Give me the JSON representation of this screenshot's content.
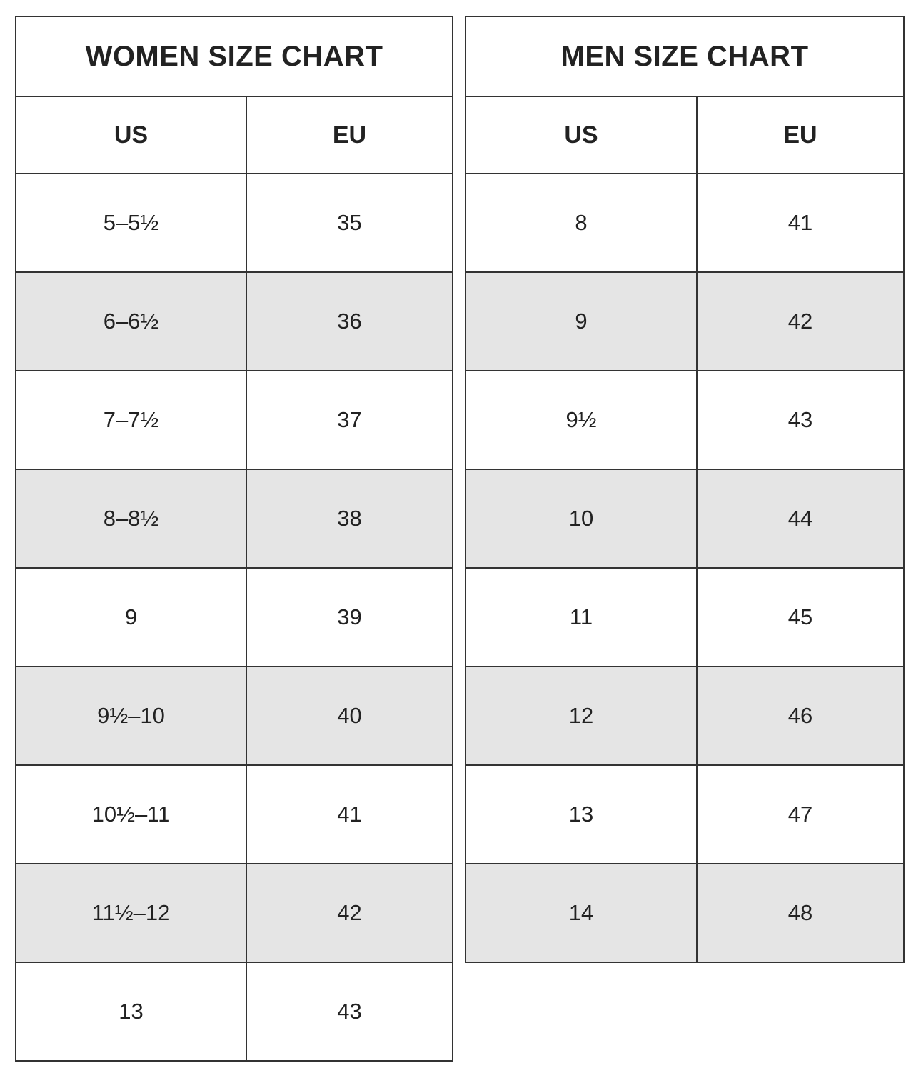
{
  "women": {
    "title": "WOMEN SIZE CHART",
    "headers": [
      "US",
      "EU"
    ],
    "rows": [
      [
        "5–5½",
        "35"
      ],
      [
        "6–6½",
        "36"
      ],
      [
        "7–7½",
        "37"
      ],
      [
        "8–8½",
        "38"
      ],
      [
        "9",
        "39"
      ],
      [
        "9½–10",
        "40"
      ],
      [
        "10½–11",
        "41"
      ],
      [
        "11½–12",
        "42"
      ],
      [
        "13",
        "43"
      ]
    ]
  },
  "men": {
    "title": "MEN SIZE CHART",
    "headers": [
      "US",
      "EU"
    ],
    "rows": [
      [
        "8",
        "41"
      ],
      [
        "9",
        "42"
      ],
      [
        "9½",
        "43"
      ],
      [
        "10",
        "44"
      ],
      [
        "11",
        "45"
      ],
      [
        "12",
        "46"
      ],
      [
        "13",
        "47"
      ],
      [
        "14",
        "48"
      ]
    ]
  },
  "colors": {
    "shaded_row": "#e5e5e5",
    "border": "#333333",
    "text": "#222222"
  }
}
